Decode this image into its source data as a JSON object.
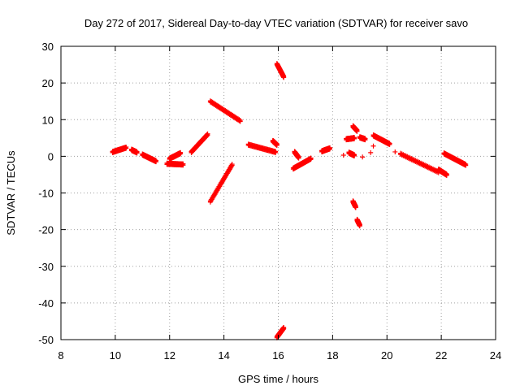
{
  "chart_data": {
    "type": "scatter",
    "title": "Day 272 of 2017, Sidereal Day-to-day VTEC variation (SDTVAR) for receiver savo",
    "xlabel": "GPS time / hours",
    "ylabel": "SDTVAR / TECUs",
    "xlim": [
      8,
      24
    ],
    "ylim": [
      -50,
      30
    ],
    "xticks": [
      8,
      10,
      12,
      14,
      16,
      18,
      20,
      22,
      24
    ],
    "yticks": [
      -50,
      -40,
      -30,
      -20,
      -10,
      0,
      10,
      20,
      30
    ],
    "grid": true,
    "grid_style": "dotted",
    "marker": "plus",
    "series": [
      {
        "name": "SDTVAR",
        "color": "#ff0000",
        "arcs": [
          {
            "x": [
              9.9,
              10.4
            ],
            "y": [
              1.0,
              2.2
            ]
          },
          {
            "x": [
              10.6,
              10.8
            ],
            "y": [
              1.6,
              0.9
            ]
          },
          {
            "x": [
              11.0,
              11.5
            ],
            "y": [
              0.3,
              -1.5
            ]
          },
          {
            "x": [
              11.9,
              12.5
            ],
            "y": [
              -2.2,
              -2.4
            ]
          },
          {
            "x": [
              12.0,
              12.4
            ],
            "y": [
              -0.8,
              0.7
            ]
          },
          {
            "x": [
              12.8,
              13.4
            ],
            "y": [
              1.0,
              5.8
            ]
          },
          {
            "x": [
              13.5,
              14.3
            ],
            "y": [
              -12.5,
              -2.5
            ]
          },
          {
            "x": [
              13.5,
              14.6
            ],
            "y": [
              14.8,
              9.5
            ]
          },
          {
            "x": [
              14.9,
              15.9
            ],
            "y": [
              3.0,
              1.0
            ]
          },
          {
            "x": [
              15.8,
              15.95
            ],
            "y": [
              4.0,
              3.0
            ]
          },
          {
            "x": [
              15.95,
              16.2
            ],
            "y": [
              25.0,
              21.5
            ]
          },
          {
            "x": [
              15.95,
              16.2
            ],
            "y": [
              -49.5,
              -47.0
            ]
          },
          {
            "x": [
              16.55,
              17.2
            ],
            "y": [
              -3.5,
              -0.8
            ]
          },
          {
            "x": [
              16.6,
              16.75
            ],
            "y": [
              1.0,
              -0.5
            ]
          },
          {
            "x": [
              17.6,
              17.9
            ],
            "y": [
              1.2,
              2.0
            ]
          },
          {
            "x": [
              18.5,
              18.8
            ],
            "y": [
              4.5,
              4.8
            ]
          },
          {
            "x": [
              18.6,
              18.8
            ],
            "y": [
              0.8,
              0.1
            ]
          },
          {
            "x": [
              18.75,
              18.9
            ],
            "y": [
              8.0,
              6.8
            ]
          },
          {
            "x": [
              18.75,
              18.85
            ],
            "y": [
              -12.5,
              -14.0
            ]
          },
          {
            "x": [
              18.9,
              19.0
            ],
            "y": [
              -17.5,
              -19.0
            ]
          },
          {
            "x": [
              19.0,
              19.2
            ],
            "y": [
              5.0,
              4.5
            ]
          },
          {
            "x": [
              19.5,
              20.1
            ],
            "y": [
              5.5,
              3.2
            ]
          },
          {
            "x": [
              20.5,
              21.9
            ],
            "y": [
              0.5,
              -4.5
            ]
          },
          {
            "x": [
              21.9,
              22.2
            ],
            "y": [
              -3.8,
              -5.2
            ]
          },
          {
            "x": [
              22.1,
              22.9
            ],
            "y": [
              0.6,
              -2.5
            ]
          }
        ],
        "points": [
          {
            "x": 19.1,
            "y": -0.2
          },
          {
            "x": 19.4,
            "y": 1.0
          },
          {
            "x": 19.5,
            "y": 2.8
          },
          {
            "x": 20.3,
            "y": 1.2
          },
          {
            "x": 18.4,
            "y": 0.3
          }
        ]
      }
    ]
  }
}
